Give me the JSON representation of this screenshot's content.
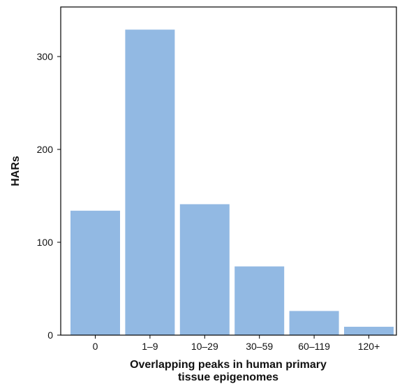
{
  "chart_data": {
    "type": "bar",
    "categories": [
      "0",
      "1–9",
      "10–29",
      "30–59",
      "60–119",
      "120+"
    ],
    "values": [
      134,
      329,
      141,
      74,
      26,
      9
    ],
    "xlabel_lines": [
      "Overlapping peaks in human primary",
      "tissue epigenomes"
    ],
    "ylabel": "HARs",
    "ylim": [
      0,
      350
    ],
    "yticks": [
      0,
      100,
      200,
      300
    ],
    "grid": false,
    "bar_color": "#92b9e3"
  }
}
